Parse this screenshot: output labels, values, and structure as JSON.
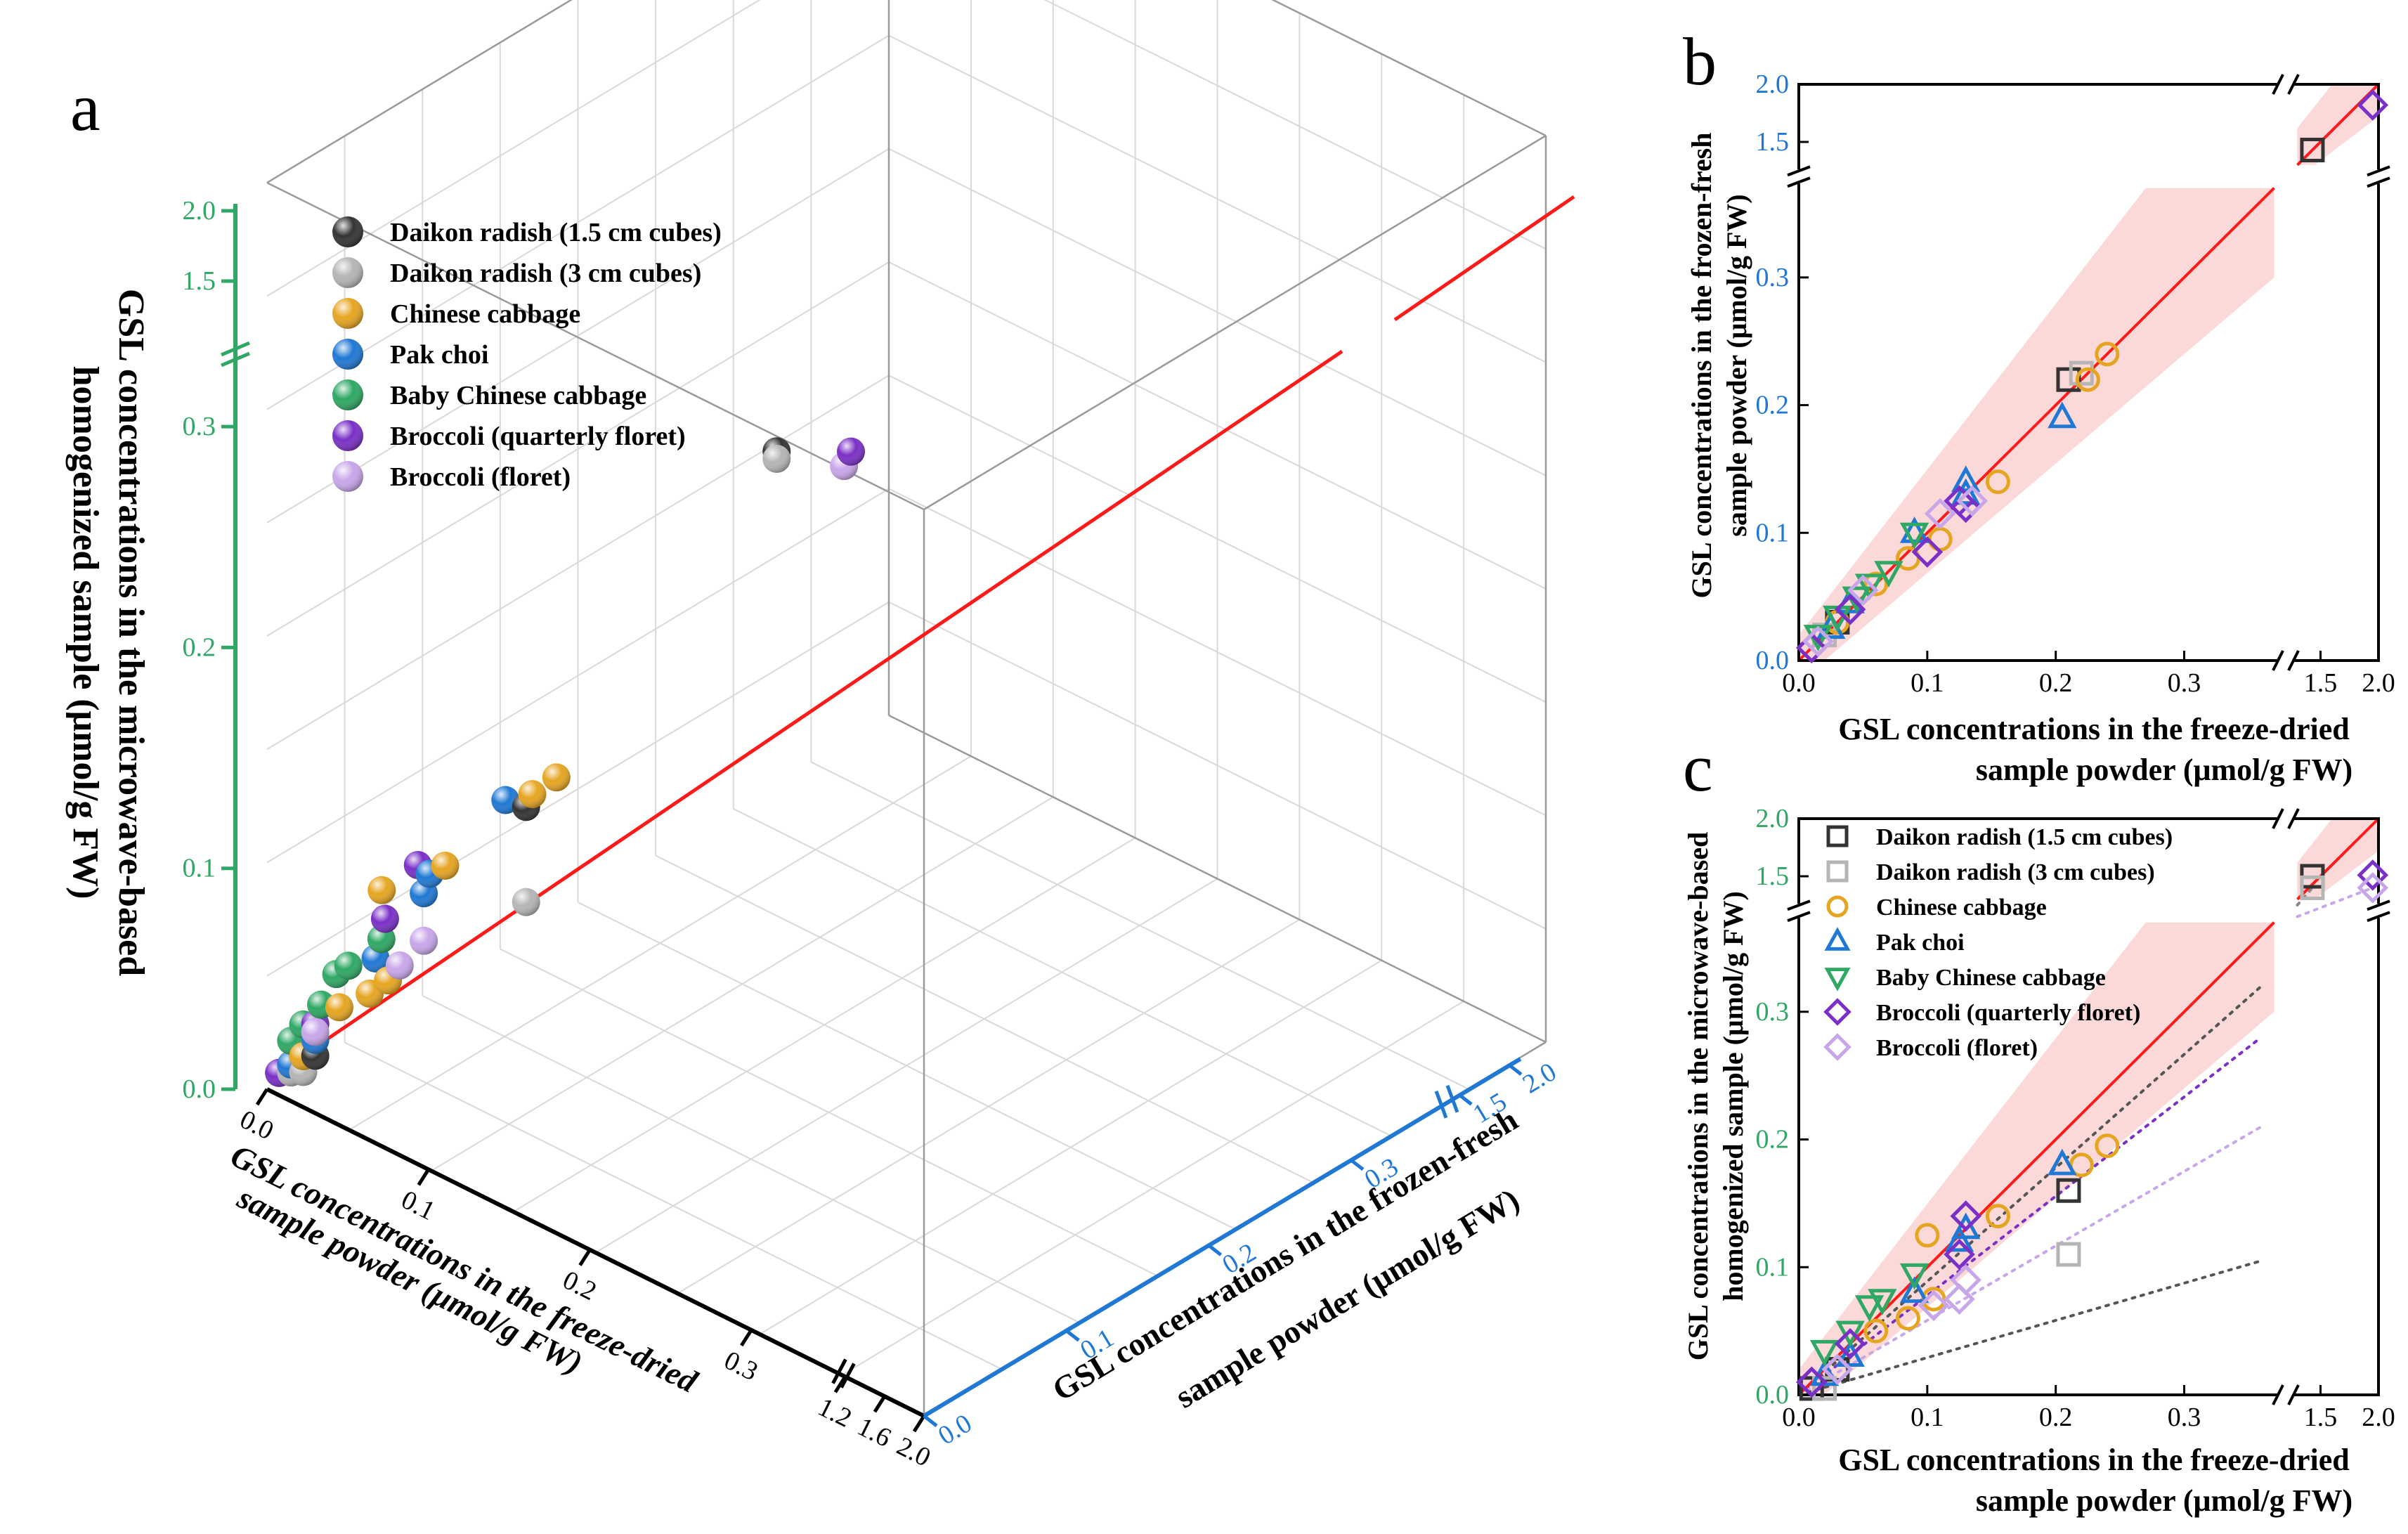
{
  "colors": {
    "daikon_15": "#333333",
    "daikon_3": "#b5b5b5",
    "chinese_cabbage": "#e6a521",
    "pak_choi": "#1f78d4",
    "baby_chinese_cabbage": "#2ea864",
    "broccoli_quarterly": "#7a2fc7",
    "broccoli_floret": "#c8a6ea",
    "fit_line": "#ff1a1a",
    "ci_band": "#fbd2d2",
    "axis_green": "#2ea864",
    "axis_blue": "#1f78d4"
  },
  "legend_series": [
    {
      "key": "daikon_15",
      "label": "Daikon radish (1.5 cm cubes)"
    },
    {
      "key": "daikon_3",
      "label": "Daikon radish (3 cm cubes)"
    },
    {
      "key": "chinese_cabbage",
      "label": "Chinese cabbage"
    },
    {
      "key": "pak_choi",
      "label": "Pak choi"
    },
    {
      "key": "baby_chinese_cabbage",
      "label": "Baby Chinese cabbage"
    },
    {
      "key": "broccoli_quarterly",
      "label": "Broccoli (quarterly floret)"
    },
    {
      "key": "broccoli_floret",
      "label": "Broccoli (floret)"
    }
  ],
  "chart_data": [
    {
      "panel": "a",
      "type": "scatter",
      "projection": "3d",
      "x_title": [
        "GSL concentrations in the freeze-dried",
        "sample powder (μmol/g FW)"
      ],
      "y_title": [
        "GSL concentrations in the frozen-fresh",
        "sample powder (μmol/g FW)"
      ],
      "z_title": [
        "GSL concentrations in the microwave-based",
        "homogenized sample (μmol/g FW)"
      ],
      "x_ticks": [
        "0.0",
        "0.1",
        "0.2",
        "0.3",
        "1.2",
        "1.6",
        "2.0"
      ],
      "y_ticks": [
        "0.0",
        "0.1",
        "0.2",
        "0.3",
        "1.5",
        "2.0"
      ],
      "z_ticks": [
        "0.0",
        "0.1",
        "0.2",
        "0.3",
        "1.5",
        "2.0"
      ],
      "axis_break": "0.35 to 1.3",
      "points": [
        {
          "s": "daikon_15",
          "x": 1.43,
          "y": 1.43,
          "z": 1.5
        },
        {
          "s": "daikon_15",
          "x": 0.21,
          "y": 0.22,
          "z": 0.17
        },
        {
          "s": "daikon_15",
          "x": 0.03,
          "y": 0.03,
          "z": 0.02
        },
        {
          "s": "daikon_15",
          "x": 0.04,
          "y": 0.04,
          "z": 0.02
        },
        {
          "s": "daikon_3",
          "x": 1.43,
          "y": 1.43,
          "z": 1.42
        },
        {
          "s": "daikon_3",
          "x": 0.21,
          "y": 0.22,
          "z": 0.11
        },
        {
          "s": "daikon_3",
          "x": 0.02,
          "y": 0.02,
          "z": 0.01
        },
        {
          "s": "daikon_3",
          "x": 0.03,
          "y": 0.03,
          "z": 0.01
        },
        {
          "s": "chinese_cabbage",
          "x": 0.24,
          "y": 0.24,
          "z": 0.19
        },
        {
          "s": "chinese_cabbage",
          "x": 0.22,
          "y": 0.22,
          "z": 0.18
        },
        {
          "s": "chinese_cabbage",
          "x": 0.155,
          "y": 0.14,
          "z": 0.14
        },
        {
          "s": "chinese_cabbage",
          "x": 0.1,
          "y": 0.09,
          "z": 0.125
        },
        {
          "s": "chinese_cabbage",
          "x": 0.11,
          "y": 0.09,
          "z": 0.07
        },
        {
          "s": "chinese_cabbage",
          "x": 0.09,
          "y": 0.08,
          "z": 0.06
        },
        {
          "s": "chinese_cabbage",
          "x": 0.06,
          "y": 0.06,
          "z": 0.05
        },
        {
          "s": "chinese_cabbage",
          "x": 0.03,
          "y": 0.03,
          "z": 0.02
        },
        {
          "s": "pak_choi",
          "x": 0.205,
          "y": 0.19,
          "z": 0.18
        },
        {
          "s": "pak_choi",
          "x": 0.13,
          "y": 0.14,
          "z": 0.13
        },
        {
          "s": "pak_choi",
          "x": 0.13,
          "y": 0.13,
          "z": 0.12
        },
        {
          "s": "pak_choi",
          "x": 0.09,
          "y": 0.09,
          "z": 0.08
        },
        {
          "s": "pak_choi",
          "x": 0.04,
          "y": 0.04,
          "z": 0.03
        },
        {
          "s": "pak_choi",
          "x": 0.02,
          "y": 0.02,
          "z": 0.015
        },
        {
          "s": "baby_chinese_cabbage",
          "x": 0.09,
          "y": 0.1,
          "z": 0.09
        },
        {
          "s": "baby_chinese_cabbage",
          "x": 0.065,
          "y": 0.07,
          "z": 0.075
        },
        {
          "s": "baby_chinese_cabbage",
          "x": 0.055,
          "y": 0.06,
          "z": 0.07
        },
        {
          "s": "baby_chinese_cabbage",
          "x": 0.04,
          "y": 0.05,
          "z": 0.05
        },
        {
          "s": "baby_chinese_cabbage",
          "x": 0.03,
          "y": 0.03,
          "z": 0.04
        },
        {
          "s": "baby_chinese_cabbage",
          "x": 0.02,
          "y": 0.02,
          "z": 0.03
        },
        {
          "s": "baby_chinese_cabbage",
          "x": 0.01,
          "y": 0.01,
          "z": 0.01
        },
        {
          "s": "broccoli_quarterly",
          "x": 2.0,
          "y": 1.9,
          "z": 1.51
        },
        {
          "s": "broccoli_quarterly",
          "x": 0.13,
          "y": 0.12,
          "z": 0.14
        },
        {
          "s": "broccoli_quarterly",
          "x": 0.11,
          "y": 0.085,
          "z": 0.11
        },
        {
          "s": "broccoli_quarterly",
          "x": 0.04,
          "y": 0.04,
          "z": 0.04
        },
        {
          "s": "broccoli_quarterly",
          "x": 0.01,
          "y": 0.01,
          "z": 0.01
        },
        {
          "s": "broccoli_floret",
          "x": 2.0,
          "y": 1.8,
          "z": 1.4
        },
        {
          "s": "broccoli_floret",
          "x": 0.13,
          "y": 0.13,
          "z": 0.09
        },
        {
          "s": "broccoli_floret",
          "x": 0.11,
          "y": 0.11,
          "z": 0.075
        },
        {
          "s": "broccoli_floret",
          "x": 0.04,
          "y": 0.04,
          "z": 0.035
        }
      ]
    },
    {
      "panel": "b",
      "type": "scatter",
      "x_title": [
        "GSL concentrations in the freeze-dried",
        "sample powder (μmol/g FW)"
      ],
      "y_title": [
        "GSL concentrations in the frozen-fresh",
        "sample powder (μmol/g FW)"
      ],
      "x_ticks": [
        "0.0",
        "0.1",
        "0.2",
        "0.3",
        "1.5",
        "2.0"
      ],
      "y_ticks": [
        "0.0",
        "0.1",
        "0.2",
        "0.3",
        "1.5",
        "2.0"
      ],
      "xlim": [
        0,
        2.0
      ],
      "ylim": [
        0,
        2.0
      ],
      "axis_break": "0.37 to 1.3",
      "points": [
        {
          "s": "daikon_15",
          "x": 1.43,
          "y": 1.43
        },
        {
          "s": "daikon_15",
          "x": 0.21,
          "y": 0.22
        },
        {
          "s": "daikon_15",
          "x": 0.03,
          "y": 0.03
        },
        {
          "s": "daikon_3",
          "x": 0.22,
          "y": 0.225
        },
        {
          "s": "daikon_3",
          "x": 0.02,
          "y": 0.02
        },
        {
          "s": "chinese_cabbage",
          "x": 0.24,
          "y": 0.24
        },
        {
          "s": "chinese_cabbage",
          "x": 0.225,
          "y": 0.22
        },
        {
          "s": "chinese_cabbage",
          "x": 0.155,
          "y": 0.14
        },
        {
          "s": "chinese_cabbage",
          "x": 0.11,
          "y": 0.095
        },
        {
          "s": "chinese_cabbage",
          "x": 0.085,
          "y": 0.08
        },
        {
          "s": "chinese_cabbage",
          "x": 0.06,
          "y": 0.06
        },
        {
          "s": "chinese_cabbage",
          "x": 0.03,
          "y": 0.03
        },
        {
          "s": "pak_choi",
          "x": 0.205,
          "y": 0.19
        },
        {
          "s": "pak_choi",
          "x": 0.13,
          "y": 0.14
        },
        {
          "s": "pak_choi",
          "x": 0.13,
          "y": 0.13
        },
        {
          "s": "pak_choi",
          "x": 0.09,
          "y": 0.1
        },
        {
          "s": "pak_choi",
          "x": 0.04,
          "y": 0.045
        },
        {
          "s": "pak_choi",
          "x": 0.025,
          "y": 0.025
        },
        {
          "s": "baby_chinese_cabbage",
          "x": 0.09,
          "y": 0.1
        },
        {
          "s": "baby_chinese_cabbage",
          "x": 0.07,
          "y": 0.07
        },
        {
          "s": "baby_chinese_cabbage",
          "x": 0.055,
          "y": 0.06
        },
        {
          "s": "baby_chinese_cabbage",
          "x": 0.045,
          "y": 0.05
        },
        {
          "s": "baby_chinese_cabbage",
          "x": 0.03,
          "y": 0.035
        },
        {
          "s": "baby_chinese_cabbage",
          "x": 0.015,
          "y": 0.02
        },
        {
          "s": "broccoli_quarterly",
          "x": 1.95,
          "y": 1.82
        },
        {
          "s": "broccoli_quarterly",
          "x": 0.13,
          "y": 0.12
        },
        {
          "s": "broccoli_quarterly",
          "x": 0.125,
          "y": 0.125
        },
        {
          "s": "broccoli_quarterly",
          "x": 0.1,
          "y": 0.085
        },
        {
          "s": "broccoli_quarterly",
          "x": 0.04,
          "y": 0.04
        },
        {
          "s": "broccoli_quarterly",
          "x": 0.01,
          "y": 0.01
        },
        {
          "s": "broccoli_floret",
          "x": 0.135,
          "y": 0.125
        },
        {
          "s": "broccoli_floret",
          "x": 0.11,
          "y": 0.115
        },
        {
          "s": "broccoli_floret",
          "x": 0.05,
          "y": 0.055
        },
        {
          "s": "broccoli_floret",
          "x": 0.015,
          "y": 0.015
        }
      ]
    },
    {
      "panel": "c",
      "type": "scatter",
      "x_title": [
        "GSL concentrations in the freeze-dried",
        "sample powder (μmol/g FW)"
      ],
      "y_title": [
        "GSL concentrations in the microwave-based",
        "homogenized sample (μmol/g FW)"
      ],
      "x_ticks": [
        "0.0",
        "0.1",
        "0.2",
        "0.3",
        "1.5",
        "2.0"
      ],
      "y_ticks": [
        "0.0",
        "0.1",
        "0.2",
        "0.3",
        "1.5",
        "2.0"
      ],
      "xlim": [
        0,
        2.0
      ],
      "ylim": [
        0,
        2.0
      ],
      "axis_break": "0.37 to 1.3",
      "points": [
        {
          "s": "daikon_15",
          "x": 1.43,
          "y": 1.5
        },
        {
          "s": "daikon_15",
          "x": 0.21,
          "y": 0.16
        },
        {
          "s": "daikon_15",
          "x": 0.03,
          "y": 0.02
        },
        {
          "s": "daikon_15",
          "x": 0.01,
          "y": 0.005
        },
        {
          "s": "daikon_3",
          "x": 1.43,
          "y": 1.4
        },
        {
          "s": "daikon_3",
          "x": 0.21,
          "y": 0.11
        },
        {
          "s": "daikon_3",
          "x": 0.02,
          "y": 0.005
        },
        {
          "s": "chinese_cabbage",
          "x": 0.24,
          "y": 0.195
        },
        {
          "s": "chinese_cabbage",
          "x": 0.22,
          "y": 0.18
        },
        {
          "s": "chinese_cabbage",
          "x": 0.155,
          "y": 0.14
        },
        {
          "s": "chinese_cabbage",
          "x": 0.1,
          "y": 0.125
        },
        {
          "s": "chinese_cabbage",
          "x": 0.105,
          "y": 0.075
        },
        {
          "s": "chinese_cabbage",
          "x": 0.085,
          "y": 0.06
        },
        {
          "s": "chinese_cabbage",
          "x": 0.06,
          "y": 0.05
        },
        {
          "s": "pak_choi",
          "x": 0.205,
          "y": 0.18
        },
        {
          "s": "pak_choi",
          "x": 0.13,
          "y": 0.13
        },
        {
          "s": "pak_choi",
          "x": 0.125,
          "y": 0.12
        },
        {
          "s": "pak_choi",
          "x": 0.09,
          "y": 0.08
        },
        {
          "s": "pak_choi",
          "x": 0.04,
          "y": 0.03
        },
        {
          "s": "pak_choi",
          "x": 0.02,
          "y": 0.015
        },
        {
          "s": "baby_chinese_cabbage",
          "x": 0.09,
          "y": 0.095
        },
        {
          "s": "baby_chinese_cabbage",
          "x": 0.065,
          "y": 0.075
        },
        {
          "s": "baby_chinese_cabbage",
          "x": 0.055,
          "y": 0.07
        },
        {
          "s": "baby_chinese_cabbage",
          "x": 0.04,
          "y": 0.05
        },
        {
          "s": "baby_chinese_cabbage",
          "x": 0.02,
          "y": 0.035
        },
        {
          "s": "broccoli_quarterly",
          "x": 1.95,
          "y": 1.51
        },
        {
          "s": "broccoli_quarterly",
          "x": 0.13,
          "y": 0.14
        },
        {
          "s": "broccoli_quarterly",
          "x": 0.125,
          "y": 0.11
        },
        {
          "s": "broccoli_quarterly",
          "x": 0.04,
          "y": 0.04
        },
        {
          "s": "broccoli_quarterly",
          "x": 0.01,
          "y": 0.01
        },
        {
          "s": "broccoli_floret",
          "x": 1.95,
          "y": 1.4
        },
        {
          "s": "broccoli_floret",
          "x": 0.13,
          "y": 0.09
        },
        {
          "s": "broccoli_floret",
          "x": 0.125,
          "y": 0.075
        },
        {
          "s": "broccoli_floret",
          "x": 0.105,
          "y": 0.07
        },
        {
          "s": "broccoli_floret",
          "x": 0.03,
          "y": 0.02
        }
      ]
    }
  ],
  "panel_labels": {
    "a": "a",
    "b": "b",
    "c": "c"
  }
}
